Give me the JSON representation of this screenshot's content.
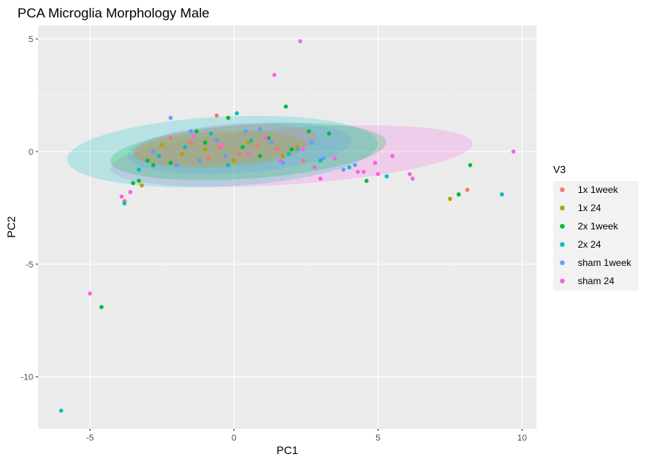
{
  "chart_data": {
    "type": "scatter",
    "title": "PCA Microglia Morphology Male",
    "xlabel": "PC1",
    "ylabel": "PC2",
    "xlim": [
      -6.8,
      10.5
    ],
    "ylim": [
      -12.3,
      5.6
    ],
    "x_ticks": [
      "-5",
      "0",
      "5",
      "10"
    ],
    "x_tick_values": [
      -5,
      0,
      5,
      10
    ],
    "y_ticks": [
      "5",
      "0",
      "-5",
      "-10"
    ],
    "y_tick_values": [
      5,
      0,
      -5,
      -10
    ],
    "grid": true,
    "background": "#ebebeb",
    "legend": {
      "title": "V3",
      "placement": "right",
      "entries": [
        "1x 1week",
        "1x 24",
        "2x 1week",
        "2x 24",
        "sham 1week",
        "sham 24"
      ]
    },
    "series": [
      {
        "name": "1x 1week",
        "color": "#F8766D",
        "points": [
          [
            -1.5,
            0.4
          ],
          [
            -0.5,
            0.2
          ],
          [
            0.2,
            -0.1
          ],
          [
            0.8,
            0.3
          ],
          [
            1.5,
            0.1
          ],
          [
            -0.6,
            1.6
          ],
          [
            -3.8,
            -2.2
          ],
          [
            7.8,
            -1.9
          ],
          [
            8.1,
            -1.7
          ],
          [
            2.4,
            -0.4
          ],
          [
            -2.2,
            0.6
          ],
          [
            -0.9,
            -0.3
          ]
        ]
      },
      {
        "name": "1x 24",
        "color": "#B79F00",
        "points": [
          [
            -3.2,
            -1.5
          ],
          [
            7.5,
            -2.1
          ],
          [
            -1.0,
            0.1
          ],
          [
            0.5,
            0.4
          ],
          [
            1.7,
            -0.2
          ],
          [
            -2.5,
            0.3
          ],
          [
            0.0,
            -0.4
          ],
          [
            2.2,
            0.2
          ],
          [
            -1.8,
            -0.1
          ]
        ]
      },
      {
        "name": "2x 1week",
        "color": "#00BA38",
        "points": [
          [
            -4.6,
            -6.9
          ],
          [
            1.8,
            2.0
          ],
          [
            8.2,
            -0.6
          ],
          [
            7.8,
            -1.9
          ],
          [
            3.3,
            0.8
          ],
          [
            4.6,
            -1.3
          ],
          [
            -3.3,
            -1.3
          ],
          [
            -3.5,
            -1.4
          ],
          [
            -2.8,
            -0.6
          ],
          [
            -2.2,
            -0.5
          ],
          [
            -1.0,
            0.4
          ],
          [
            0.3,
            0.2
          ],
          [
            1.2,
            0.6
          ],
          [
            2.6,
            0.9
          ],
          [
            -0.2,
            1.5
          ],
          [
            -1.3,
            0.9
          ],
          [
            0.9,
            -0.2
          ],
          [
            2.0,
            0.1
          ],
          [
            -3.0,
            -0.4
          ]
        ]
      },
      {
        "name": "2x 24",
        "color": "#00BFC4",
        "points": [
          [
            -6.0,
            -11.5
          ],
          [
            -3.8,
            -2.3
          ],
          [
            9.3,
            -1.9
          ],
          [
            -3.3,
            -0.8
          ],
          [
            0.1,
            1.7
          ],
          [
            5.3,
            -1.1
          ],
          [
            4.0,
            -0.7
          ],
          [
            -0.8,
            0.8
          ],
          [
            0.6,
            0.5
          ],
          [
            1.9,
            -0.1
          ],
          [
            -1.7,
            0.2
          ],
          [
            3.0,
            -0.4
          ],
          [
            -2.6,
            -0.2
          ],
          [
            -0.2,
            -0.6
          ]
        ]
      },
      {
        "name": "sham 1week",
        "color": "#619CFF",
        "points": [
          [
            -2.2,
            1.5
          ],
          [
            -1.5,
            0.9
          ],
          [
            -0.6,
            0.5
          ],
          [
            0.4,
            0.9
          ],
          [
            1.3,
            0.4
          ],
          [
            2.2,
            0.1
          ],
          [
            3.1,
            -0.3
          ],
          [
            3.8,
            -0.8
          ],
          [
            -2.8,
            0.0
          ],
          [
            -1.2,
            -0.4
          ],
          [
            0.9,
            1.0
          ],
          [
            -0.3,
            -0.2
          ],
          [
            1.7,
            -0.5
          ],
          [
            2.7,
            0.4
          ],
          [
            4.2,
            -0.6
          ],
          [
            -2.0,
            -0.6
          ]
        ]
      },
      {
        "name": "sham 24",
        "color": "#F564E3",
        "points": [
          [
            2.3,
            4.9
          ],
          [
            1.4,
            3.4
          ],
          [
            -5.0,
            -6.3
          ],
          [
            9.7,
            0.0
          ],
          [
            5.5,
            -0.2
          ],
          [
            6.1,
            -1.0
          ],
          [
            6.2,
            -1.2
          ],
          [
            4.5,
            -0.9
          ],
          [
            4.9,
            -0.5
          ],
          [
            5.0,
            -1.0
          ],
          [
            3.0,
            -1.2
          ],
          [
            -3.6,
            -1.8
          ],
          [
            -3.9,
            -2.0
          ],
          [
            2.4,
            0.1
          ],
          [
            3.5,
            -0.3
          ],
          [
            1.6,
            -0.4
          ],
          [
            -0.4,
            0.3
          ],
          [
            0.5,
            -0.1
          ],
          [
            1.1,
            0.6
          ],
          [
            -1.4,
            0.7
          ],
          [
            4.3,
            -0.9
          ],
          [
            2.8,
            -0.7
          ]
        ]
      }
    ],
    "ellipses": [
      {
        "series": "sham 24",
        "cx": 2.0,
        "cy": -0.2,
        "rx": 6.3,
        "ry": 1.25,
        "angle": -4
      },
      {
        "series": "2x 24",
        "cx": -0.4,
        "cy": 0.0,
        "rx": 5.4,
        "ry": 1.55,
        "angle": -3
      },
      {
        "series": "2x 1week",
        "cx": 0.5,
        "cy": 0.0,
        "rx": 4.8,
        "ry": 1.2,
        "angle": -4
      },
      {
        "series": "sham 1week",
        "cx": 0.2,
        "cy": 0.15,
        "rx": 3.9,
        "ry": 1.1,
        "angle": -4
      },
      {
        "series": "1x 1week",
        "cx": -0.3,
        "cy": 0.3,
        "rx": 3.2,
        "ry": 0.85,
        "angle": -5
      },
      {
        "series": "1x 24",
        "cx": -0.5,
        "cy": 0.1,
        "rx": 3.0,
        "ry": 0.8,
        "angle": -3
      }
    ]
  }
}
